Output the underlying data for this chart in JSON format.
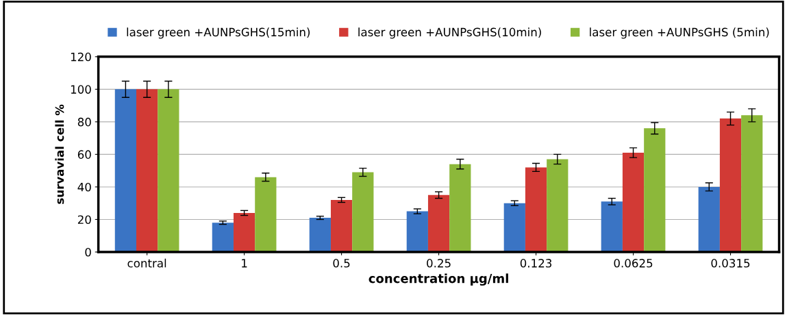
{
  "chart_data": {
    "type": "bar",
    "xlabel": "concentration µg/ml",
    "ylabel": "survavial cell %",
    "categories": [
      "contral",
      "1",
      "0.5",
      "0.25",
      "0.123",
      "0.0625",
      "0.0315"
    ],
    "series": [
      {
        "name": "laser green +AUNPsGHS(15min)",
        "color": "#3a74c4",
        "values": [
          100,
          18,
          21,
          25,
          30,
          31,
          40
        ],
        "errors": [
          5,
          1,
          1,
          1.5,
          1.5,
          2,
          2.5
        ]
      },
      {
        "name": "laser green +AUNPsGHS(10min)",
        "color": "#d23a35",
        "values": [
          100,
          24,
          32,
          35,
          52,
          61,
          82
        ],
        "errors": [
          5,
          1.5,
          1.5,
          2,
          2.5,
          3,
          4
        ]
      },
      {
        "name": "laser green +AUNPsGHS (5min)",
        "color": "#8cb83a",
        "values": [
          100,
          46,
          49,
          54,
          57,
          76,
          84
        ],
        "errors": [
          5,
          2.5,
          2.5,
          3,
          3,
          3.5,
          4
        ]
      }
    ],
    "ylim": [
      0,
      120
    ],
    "yticks": [
      0,
      20,
      40,
      60,
      80,
      100,
      120
    ],
    "grid": "y",
    "legend": "top"
  }
}
